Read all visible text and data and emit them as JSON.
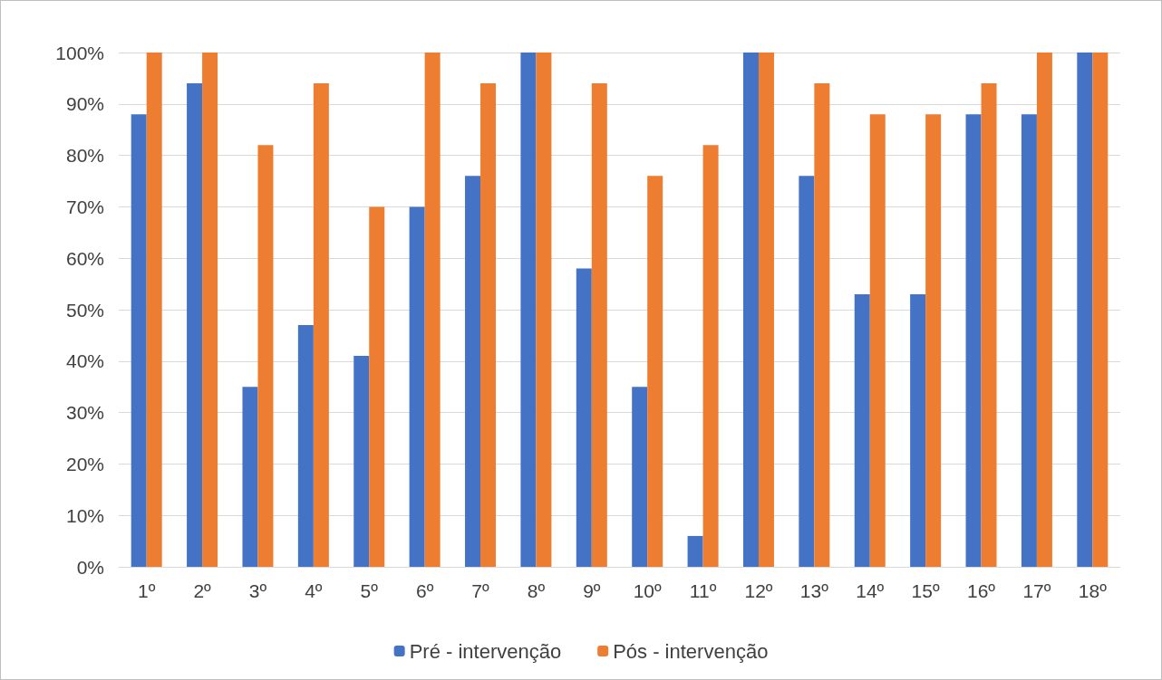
{
  "chart_data": {
    "type": "bar",
    "categories": [
      "1º",
      "2º",
      "3º",
      "4º",
      "5º",
      "6º",
      "7º",
      "8º",
      "9º",
      "10º",
      "11º",
      "12º",
      "13º",
      "14º",
      "15º",
      "16º",
      "17º",
      "18º"
    ],
    "series": [
      {
        "name": "Pré - intervenção",
        "color": "#4472c4",
        "values": [
          88,
          94,
          35,
          47,
          41,
          70,
          76,
          100,
          58,
          35,
          6,
          100,
          76,
          53,
          53,
          88,
          88,
          100
        ]
      },
      {
        "name": "Pós - intervenção",
        "color": "#ed7d31",
        "values": [
          100,
          100,
          82,
          94,
          70,
          100,
          94,
          100,
          94,
          76,
          82,
          100,
          94,
          88,
          88,
          94,
          100,
          100
        ]
      }
    ],
    "ylim": [
      0,
      100
    ],
    "yticks": [
      {
        "value": 0,
        "label": "0%"
      },
      {
        "value": 10,
        "label": "10%"
      },
      {
        "value": 20,
        "label": "20%"
      },
      {
        "value": 30,
        "label": "30%"
      },
      {
        "value": 40,
        "label": "40%"
      },
      {
        "value": 50,
        "label": "50%"
      },
      {
        "value": 60,
        "label": "60%"
      },
      {
        "value": 70,
        "label": "70%"
      },
      {
        "value": 80,
        "label": "80%"
      },
      {
        "value": 90,
        "label": "90%"
      },
      {
        "value": 100,
        "label": "100%"
      }
    ],
    "grid": "y",
    "legend": "bottom"
  }
}
